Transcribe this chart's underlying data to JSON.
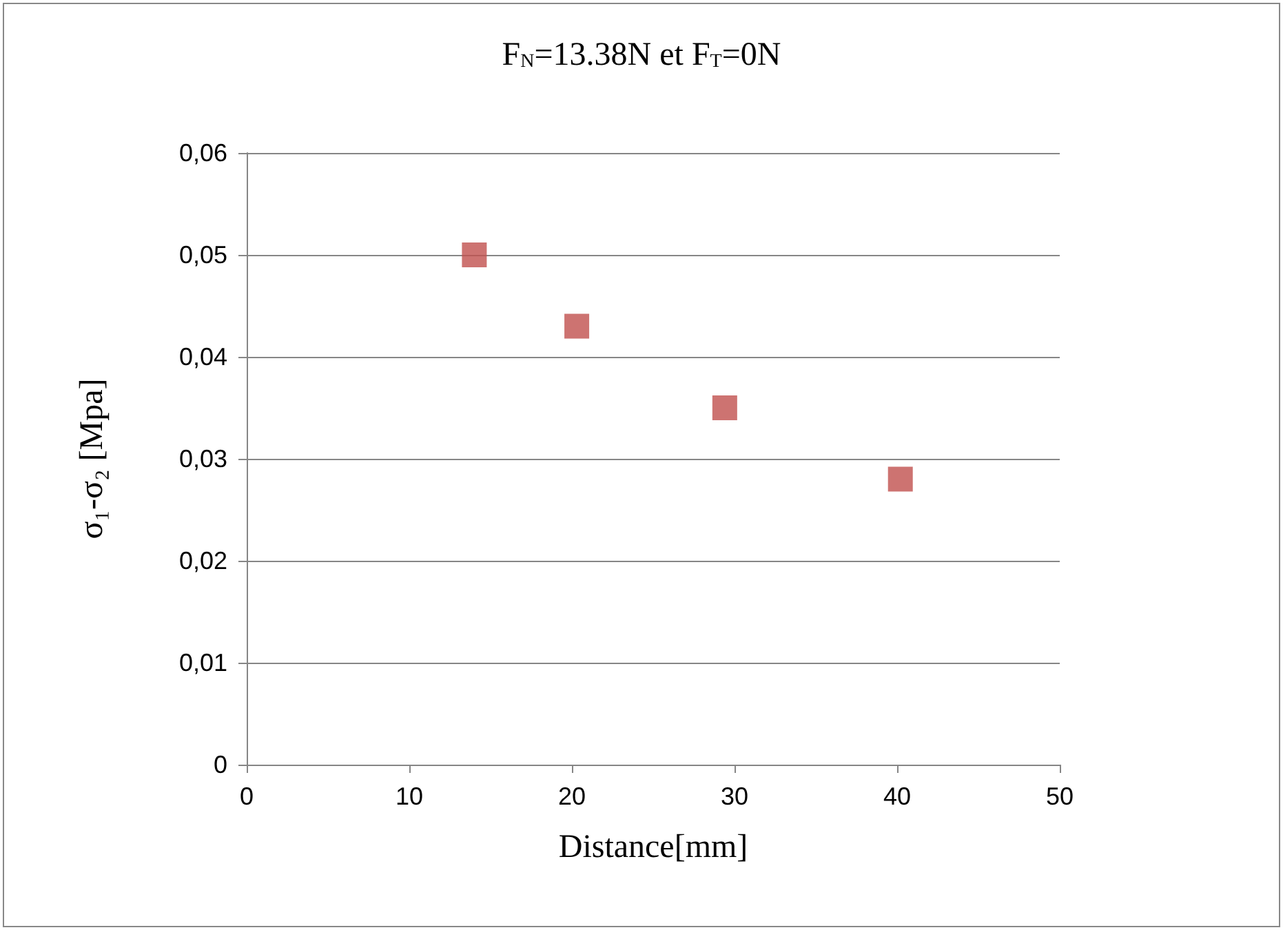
{
  "chart_data": {
    "type": "scatter",
    "title": "F$_{N}$=13.38N et F$_{T}$=0N",
    "xlabel": "Distance[mm]",
    "ylabel": "σ₁-σ₂ [Mpa]",
    "x": [
      14.0,
      20.3,
      29.4,
      40.2
    ],
    "series": [
      {
        "color": "#c0504d",
        "values": [
          0.05,
          0.043,
          0.035,
          0.028
        ]
      }
    ],
    "xlim": [
      0,
      50
    ],
    "xticks": [
      0,
      10,
      20,
      30,
      40,
      50
    ],
    "ylim": [
      0,
      0.06
    ],
    "yticks": [
      {
        "value": 0,
        "label": "0"
      },
      {
        "value": 0.01,
        "label": "0,01"
      },
      {
        "value": 0.02,
        "label": "0,02"
      },
      {
        "value": 0.03,
        "label": "0,03"
      },
      {
        "value": 0.04,
        "label": "0,04"
      },
      {
        "value": 0.05,
        "label": "0,05"
      },
      {
        "value": 0.06,
        "label": "0,06"
      }
    ],
    "grid": "y",
    "marker": "square"
  }
}
